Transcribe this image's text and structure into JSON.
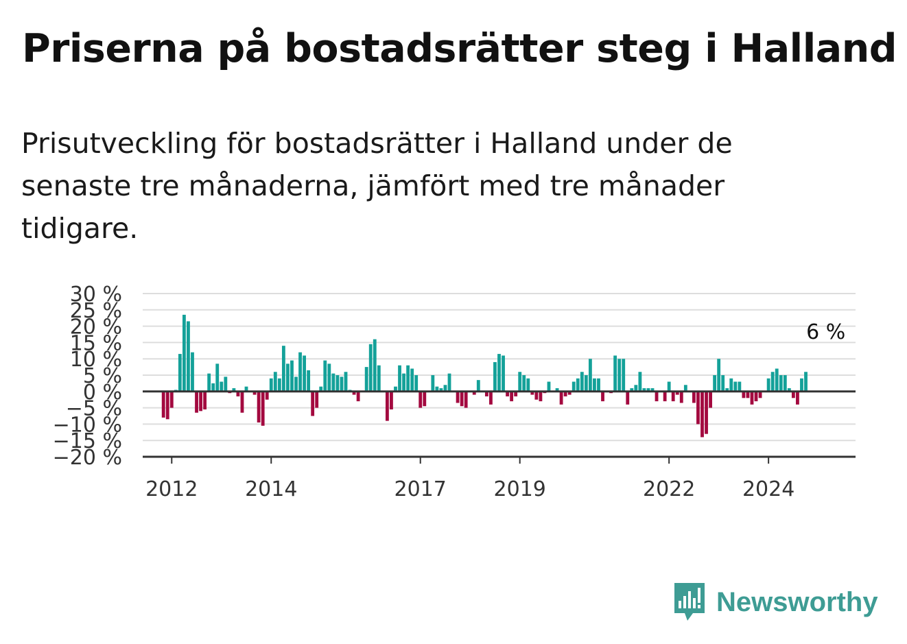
{
  "title": "Priserna på bostadsrätter steg i Halland",
  "subtitle": "Prisutveckling för bostadsrätter i Halland under de senaste tre månaderna, jämfört med tre månader tidigare.",
  "brand": {
    "name": "Newsworthy",
    "icon": "newsworthy-logo-icon"
  },
  "colors": {
    "positive": "#14a199",
    "negative": "#a3093f",
    "grid": "#dddddd",
    "axis": "#333333"
  },
  "chart_data": {
    "type": "bar",
    "title": "Priserna på bostadsrätter steg i Halland",
    "subtitle": "Prisutveckling för bostadsrätter i Halland under de senaste tre månaderna, jämfört med tre månader tidigare.",
    "xlabel": "",
    "ylabel": "",
    "ylim": [
      -20,
      30
    ],
    "grid": true,
    "y_ticks": [
      "30 %",
      "25 %",
      "20 %",
      "15 %",
      "10 %",
      "5 %",
      "0 %",
      "−5 %",
      "−10 %",
      "−15 %",
      "−20 %"
    ],
    "y_tick_values": [
      30,
      25,
      20,
      15,
      10,
      5,
      0,
      -5,
      -10,
      -15,
      -20
    ],
    "x_ticks": [
      "2012",
      "2014",
      "2017",
      "2019",
      "2022",
      "2024"
    ],
    "x_tick_values": [
      "2012-01",
      "2014-01",
      "2017-01",
      "2019-01",
      "2022-01",
      "2024-01"
    ],
    "x_start": "2011-06",
    "x_end": "2025-10",
    "start_month": "2011-11",
    "values": [
      -8,
      -8.5,
      -5,
      0.5,
      11.5,
      23.5,
      21.5,
      12,
      -6.5,
      -6,
      -5.5,
      5.5,
      2.5,
      8.5,
      3,
      4.5,
      -0.5,
      1,
      -1.5,
      -6.5,
      1.5,
      0,
      -1,
      -9.5,
      -10.5,
      -2.5,
      4,
      6,
      4,
      14,
      8.5,
      9.5,
      4.5,
      12,
      11,
      6.5,
      -7.5,
      -5,
      1.5,
      9.5,
      8.5,
      5.5,
      5,
      4.5,
      6,
      0.5,
      -1,
      -3,
      0,
      7.5,
      14.5,
      16,
      8,
      0,
      -9,
      -5.5,
      1.5,
      8,
      5.5,
      8,
      7,
      5,
      -5,
      -4.5,
      0,
      5,
      1.5,
      1,
      2,
      5.5,
      0,
      -3.5,
      -4.5,
      -5,
      0,
      -1,
      3.5,
      0,
      -1.5,
      -4,
      9,
      11.5,
      11,
      -1.5,
      -3,
      -1.5,
      6,
      5,
      4,
      -1,
      -2.5,
      -3,
      -0.5,
      3,
      0,
      1,
      -4,
      -1.5,
      -1,
      3,
      4,
      6,
      5,
      10,
      4,
      4,
      -3,
      0,
      -0.5,
      11,
      10,
      10,
      -4,
      1,
      2,
      6,
      1,
      1,
      1,
      -3,
      0,
      -3,
      3,
      -3,
      -1,
      -3.5,
      2,
      0,
      -3.5,
      -10,
      -14,
      -13,
      -5,
      5,
      10,
      5,
      1,
      4,
      3,
      3,
      -2,
      -2,
      -4,
      -3,
      -2,
      0,
      4,
      6,
      7,
      5,
      5,
      1,
      -2,
      -4,
      4,
      6
    ],
    "annotations": [
      {
        "label": "6 %",
        "value": 6,
        "x": "2025-02"
      }
    ]
  }
}
